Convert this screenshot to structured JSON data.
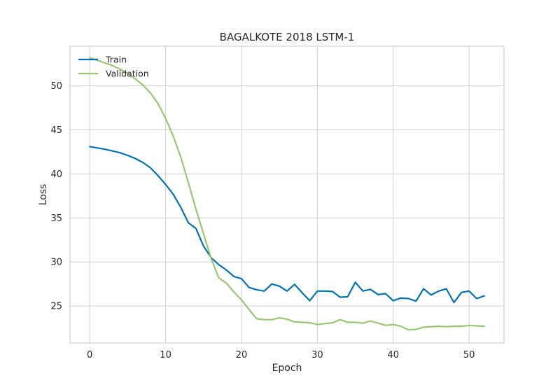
{
  "chart_data": {
    "type": "line",
    "title": "BAGALKOTE 2018 LSTM-1",
    "xlabel": "Epoch",
    "ylabel": "Loss",
    "xlim": [
      -2.6,
      54.6
    ],
    "ylim": [
      20.8,
      54.5
    ],
    "xticks": [
      0,
      10,
      20,
      30,
      40,
      50
    ],
    "yticks": [
      25,
      30,
      35,
      40,
      45,
      50
    ],
    "grid": true,
    "legend_position": "top-left",
    "x": [
      0,
      1,
      2,
      3,
      4,
      5,
      6,
      7,
      8,
      9,
      10,
      11,
      12,
      13,
      14,
      15,
      16,
      17,
      18,
      19,
      20,
      21,
      22,
      23,
      24,
      25,
      26,
      27,
      28,
      29,
      30,
      31,
      32,
      33,
      34,
      35,
      36,
      37,
      38,
      39,
      40,
      41,
      42,
      43,
      44,
      45,
      46,
      47,
      48,
      49,
      50,
      51,
      52
    ],
    "series": [
      {
        "name": "Train",
        "color": "#0072b2",
        "values": [
          43.1,
          42.95,
          42.8,
          42.6,
          42.4,
          42.1,
          41.75,
          41.3,
          40.7,
          39.8,
          38.8,
          37.7,
          36.2,
          34.45,
          33.8,
          31.8,
          30.5,
          29.7,
          29.1,
          28.35,
          28.1,
          27.1,
          26.85,
          26.7,
          27.5,
          27.25,
          26.7,
          27.45,
          26.5,
          25.6,
          26.7,
          26.7,
          26.65,
          26.0,
          26.05,
          27.7,
          26.7,
          26.9,
          26.3,
          26.4,
          25.6,
          25.9,
          25.85,
          25.55,
          26.95,
          26.25,
          26.7,
          26.95,
          25.4,
          26.55,
          26.7,
          25.85,
          26.15
        ]
      },
      {
        "name": "Validation",
        "color": "#98c774",
        "values": [
          53.2,
          52.9,
          52.6,
          52.3,
          51.9,
          51.4,
          50.8,
          50.1,
          49.2,
          48.0,
          46.3,
          44.3,
          41.9,
          39.0,
          36.0,
          33.2,
          30.4,
          28.2,
          27.6,
          26.6,
          25.7,
          24.6,
          23.55,
          23.45,
          23.45,
          23.65,
          23.5,
          23.2,
          23.15,
          23.1,
          22.9,
          23.0,
          23.1,
          23.45,
          23.15,
          23.15,
          23.05,
          23.3,
          23.05,
          22.8,
          22.9,
          22.7,
          22.3,
          22.35,
          22.6,
          22.65,
          22.7,
          22.65,
          22.7,
          22.7,
          22.8,
          22.75,
          22.7
        ]
      }
    ]
  }
}
